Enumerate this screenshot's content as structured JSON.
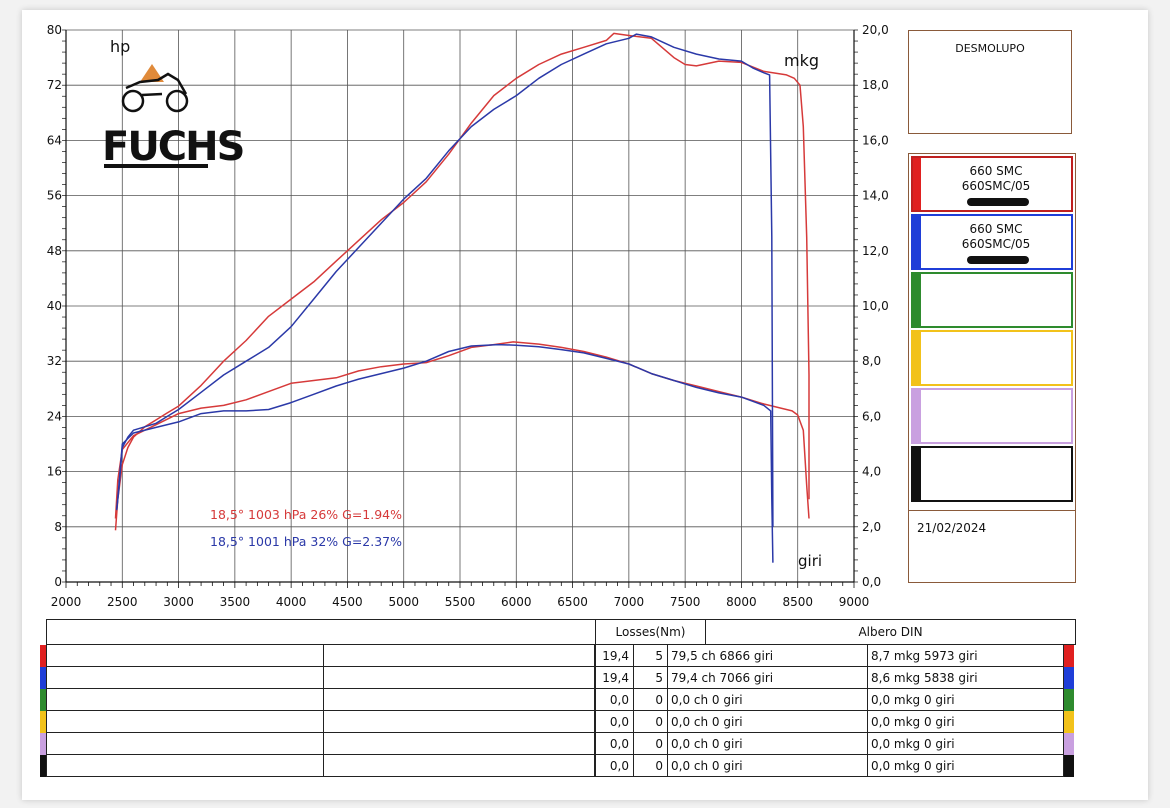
{
  "chart_data": {
    "type": "line",
    "x_axis": {
      "ticks": [
        "2000",
        "2500",
        "3000",
        "3500",
        "4000",
        "4500",
        "5000",
        "5500",
        "6000",
        "6500",
        "7000",
        "7500",
        "8000",
        "8500",
        "9000"
      ],
      "range": [
        2000,
        9000
      ],
      "label": "giri"
    },
    "y_left": {
      "ticks": [
        "0",
        "8",
        "16",
        "24",
        "32",
        "40",
        "48",
        "56",
        "64",
        "72",
        "80"
      ],
      "range": [
        0,
        80
      ],
      "label": "hp"
    },
    "y_right": {
      "ticks": [
        "0,0",
        "2,0",
        "4,0",
        "6,0",
        "8,0",
        "10,0",
        "12,0",
        "14,0",
        "16,0",
        "18,0",
        "20,0"
      ],
      "range": [
        0,
        20
      ],
      "label": "mkg"
    },
    "grid": true,
    "series": [
      {
        "name": "660 SMC 660SMC/05",
        "color": "#d63a3a",
        "power_hp": [
          [
            2440,
            7.5
          ],
          [
            2460,
            12
          ],
          [
            2500,
            17
          ],
          [
            2550,
            19.5
          ],
          [
            2600,
            21
          ],
          [
            2700,
            22.5
          ],
          [
            2800,
            23.5
          ],
          [
            2900,
            24.5
          ],
          [
            3000,
            25.5
          ],
          [
            3200,
            28.5
          ],
          [
            3400,
            32
          ],
          [
            3600,
            35
          ],
          [
            3800,
            38.5
          ],
          [
            4000,
            41
          ],
          [
            4200,
            43.5
          ],
          [
            4400,
            46.5
          ],
          [
            4600,
            49.5
          ],
          [
            4800,
            52.5
          ],
          [
            5000,
            55
          ],
          [
            5200,
            58
          ],
          [
            5400,
            62
          ],
          [
            5600,
            66.5
          ],
          [
            5800,
            70.5
          ],
          [
            6000,
            73
          ],
          [
            6200,
            75
          ],
          [
            6400,
            76.5
          ],
          [
            6600,
            77.5
          ],
          [
            6800,
            78.5
          ],
          [
            6866,
            79.5
          ],
          [
            7000,
            79.2
          ],
          [
            7200,
            78.8
          ],
          [
            7400,
            76
          ],
          [
            7500,
            75
          ],
          [
            7600,
            74.8
          ],
          [
            7800,
            75.5
          ],
          [
            8000,
            75.3
          ],
          [
            8200,
            74
          ],
          [
            8400,
            73.5
          ],
          [
            8470,
            73
          ],
          [
            8520,
            72
          ],
          [
            8550,
            66
          ],
          [
            8580,
            50
          ],
          [
            8600,
            30
          ],
          [
            8600,
            12
          ]
        ],
        "torque_mkg": [
          [
            2440,
            2.3
          ],
          [
            2460,
            3.7
          ],
          [
            2500,
            4.8
          ],
          [
            2600,
            5.3
          ],
          [
            2800,
            5.7
          ],
          [
            3000,
            6.1
          ],
          [
            3200,
            6.3
          ],
          [
            3400,
            6.4
          ],
          [
            3600,
            6.6
          ],
          [
            3800,
            6.9
          ],
          [
            4000,
            7.2
          ],
          [
            4200,
            7.3
          ],
          [
            4400,
            7.4
          ],
          [
            4600,
            7.65
          ],
          [
            4800,
            7.8
          ],
          [
            5000,
            7.9
          ],
          [
            5200,
            7.95
          ],
          [
            5400,
            8.2
          ],
          [
            5600,
            8.5
          ],
          [
            5800,
            8.6
          ],
          [
            5973,
            8.7
          ],
          [
            6200,
            8.62
          ],
          [
            6400,
            8.5
          ],
          [
            6600,
            8.35
          ],
          [
            6800,
            8.15
          ],
          [
            7000,
            7.9
          ],
          [
            7200,
            7.55
          ],
          [
            7400,
            7.3
          ],
          [
            7600,
            7.1
          ],
          [
            7800,
            6.9
          ],
          [
            8000,
            6.7
          ],
          [
            8200,
            6.45
          ],
          [
            8350,
            6.3
          ],
          [
            8450,
            6.2
          ],
          [
            8500,
            6.05
          ],
          [
            8550,
            5.5
          ],
          [
            8580,
            3.5
          ],
          [
            8600,
            2.3
          ]
        ]
      },
      {
        "name": "660 SMC 660SMC/05",
        "color": "#2b39a8",
        "power_hp": [
          [
            2450,
            10.5
          ],
          [
            2470,
            13.5
          ],
          [
            2500,
            19.5
          ],
          [
            2550,
            21
          ],
          [
            2600,
            22
          ],
          [
            2700,
            22.5
          ],
          [
            2800,
            23
          ],
          [
            2900,
            24
          ],
          [
            3000,
            25
          ],
          [
            3200,
            27.5
          ],
          [
            3400,
            30
          ],
          [
            3600,
            32
          ],
          [
            3800,
            34
          ],
          [
            4000,
            37
          ],
          [
            4200,
            41
          ],
          [
            4400,
            45
          ],
          [
            4600,
            48.5
          ],
          [
            4800,
            52
          ],
          [
            5000,
            55.5
          ],
          [
            5200,
            58.5
          ],
          [
            5400,
            62.5
          ],
          [
            5600,
            66
          ],
          [
            5800,
            68.5
          ],
          [
            6000,
            70.5
          ],
          [
            6200,
            73
          ],
          [
            6400,
            75
          ],
          [
            6600,
            76.5
          ],
          [
            6800,
            78
          ],
          [
            7000,
            78.8
          ],
          [
            7066,
            79.4
          ],
          [
            7200,
            79
          ],
          [
            7400,
            77.5
          ],
          [
            7600,
            76.5
          ],
          [
            7800,
            75.8
          ],
          [
            8000,
            75.5
          ],
          [
            8100,
            74.5
          ],
          [
            8200,
            73.8
          ],
          [
            8250,
            73.5
          ],
          [
            8270,
            50
          ],
          [
            8280,
            8
          ]
        ],
        "torque_mkg": [
          [
            2450,
            2.6
          ],
          [
            2470,
            3.5
          ],
          [
            2500,
            5.0
          ],
          [
            2600,
            5.4
          ],
          [
            2800,
            5.6
          ],
          [
            3000,
            5.8
          ],
          [
            3200,
            6.1
          ],
          [
            3400,
            6.2
          ],
          [
            3600,
            6.2
          ],
          [
            3800,
            6.25
          ],
          [
            4000,
            6.5
          ],
          [
            4200,
            6.8
          ],
          [
            4400,
            7.1
          ],
          [
            4600,
            7.35
          ],
          [
            4800,
            7.55
          ],
          [
            5000,
            7.75
          ],
          [
            5200,
            8.0
          ],
          [
            5400,
            8.35
          ],
          [
            5600,
            8.55
          ],
          [
            5838,
            8.6
          ],
          [
            6000,
            8.58
          ],
          [
            6200,
            8.52
          ],
          [
            6400,
            8.42
          ],
          [
            6600,
            8.3
          ],
          [
            6800,
            8.1
          ],
          [
            7000,
            7.9
          ],
          [
            7200,
            7.55
          ],
          [
            7400,
            7.3
          ],
          [
            7600,
            7.05
          ],
          [
            7800,
            6.85
          ],
          [
            8000,
            6.7
          ],
          [
            8200,
            6.4
          ],
          [
            8260,
            6.2
          ],
          [
            8270,
            3.0
          ],
          [
            8280,
            0.7
          ]
        ]
      }
    ],
    "annotations": [
      {
        "text": "18,5°  1003 hPa  26%    G=1.94%",
        "color": "#d63a3a"
      },
      {
        "text": "18,5°  1001 hPa  32%    G=2.37%",
        "color": "#2b39a8"
      }
    ]
  },
  "brand": {
    "name": "FUCHS"
  },
  "customer": "DESMOLUPO",
  "legend": [
    {
      "line1": "660 SMC",
      "line2": "660SMC/05",
      "color": "#e02020",
      "redacted": true
    },
    {
      "line1": "660 SMC",
      "line2": "660SMC/05",
      "color": "#1f3ed8",
      "redacted": true
    },
    {
      "line1": "",
      "line2": "",
      "color": "#2e8b2e",
      "redacted": false
    },
    {
      "line1": "",
      "line2": "",
      "color": "#f2c21a",
      "redacted": false
    },
    {
      "line1": "",
      "line2": "",
      "color": "#c9a0e0",
      "redacted": false
    },
    {
      "line1": "",
      "line2": "",
      "color": "#111111",
      "redacted": false
    }
  ],
  "date": "21/02/2024",
  "table": {
    "losses_header": "Losses(Nm)",
    "albero_header": "Albero DIN",
    "rows": [
      {
        "color": "#e02020",
        "loss": "19,4",
        "n": "5",
        "power": "79,5 ch 6866 giri",
        "torque": "8,7 mkg 5973 giri"
      },
      {
        "color": "#1f3ed8",
        "loss": "19,4",
        "n": "5",
        "power": "79,4 ch 7066 giri",
        "torque": "8,6 mkg 5838 giri"
      },
      {
        "color": "#2e8b2e",
        "loss": "0,0",
        "n": "0",
        "power": "0,0 ch 0 giri",
        "torque": "0,0 mkg 0 giri"
      },
      {
        "color": "#f2c21a",
        "loss": "0,0",
        "n": "0",
        "power": "0,0 ch 0 giri",
        "torque": "0,0 mkg 0 giri"
      },
      {
        "color": "#c9a0e0",
        "loss": "0,0",
        "n": "0",
        "power": "0,0 ch 0 giri",
        "torque": "0,0 mkg 0 giri"
      },
      {
        "color": "#111111",
        "loss": "0,0",
        "n": "0",
        "power": "0,0 ch 0 giri",
        "torque": "0,0 mkg 0 giri"
      }
    ]
  }
}
